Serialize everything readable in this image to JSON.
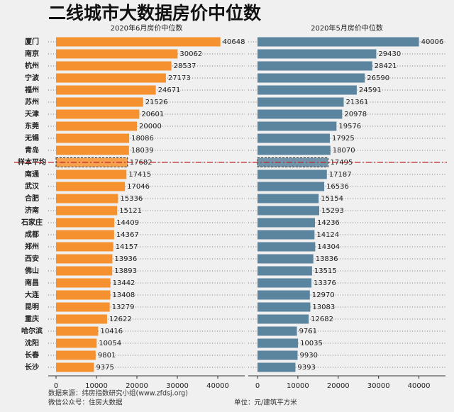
{
  "chart_data": {
    "type": "bar",
    "title": "二线城市大数据房价中位数",
    "categories": [
      "厦门",
      "南京",
      "杭州",
      "宁波",
      "福州",
      "苏州",
      "天津",
      "东莞",
      "无锡",
      "青岛",
      "样本平均",
      "南通",
      "武汉",
      "合肥",
      "济南",
      "石家庄",
      "成都",
      "郑州",
      "西安",
      "佛山",
      "南昌",
      "大连",
      "昆明",
      "重庆",
      "哈尔滨",
      "沈阳",
      "长春",
      "长沙"
    ],
    "series": [
      {
        "name": "2020年6月房价中位数",
        "color": "#f5922f",
        "values": [
          40648,
          30062,
          28537,
          27173,
          24671,
          21526,
          20601,
          20000,
          18086,
          18039,
          17682,
          17415,
          17046,
          15336,
          15121,
          14409,
          14367,
          14157,
          13936,
          13893,
          13442,
          13408,
          13279,
          12622,
          10416,
          10054,
          9801,
          9375
        ]
      },
      {
        "name": "2020年5月房价中位数",
        "color": "#5b849e",
        "values": [
          40006,
          29430,
          28421,
          26590,
          24591,
          21361,
          20978,
          19576,
          17925,
          18070,
          17495,
          17187,
          16536,
          15154,
          15293,
          14236,
          14124,
          14304,
          13836,
          13515,
          13376,
          12970,
          13083,
          12682,
          9761,
          10035,
          9930,
          9393
        ]
      }
    ],
    "reference_row": 10,
    "xlim": [
      0,
      45000
    ],
    "xticks": [
      0,
      10000,
      20000,
      30000,
      40000
    ],
    "source": "数据来源：纬房指数研究小组(www.zfdsj.org)",
    "wechat": "微信公众号：住房大数据",
    "unit": "单位：元/建筑平方米"
  }
}
